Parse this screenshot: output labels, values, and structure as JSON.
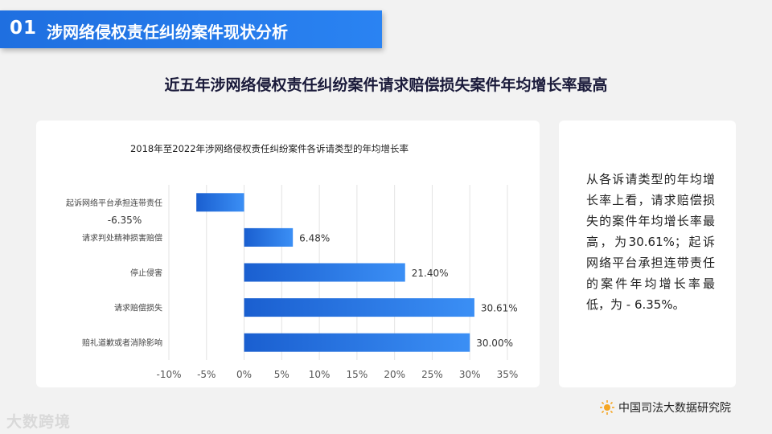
{
  "header": {
    "number": "01",
    "title": "涉网络侵权责任纠纷案件现状分析"
  },
  "subtitle": "近五年涉网络侵权责任纠纷案件请求赔偿损失案件年均增长率最高",
  "side_text": "从各诉请类型的年均增长率上看，请求赔偿损失的案件年均增长率最高，为30.61%；起诉网络平台承担连带责任的案件年均增长率最低，为 - 6.35%。",
  "footer": {
    "left_logo": "大数跨境",
    "right_logo": "中国司法大数据研究院"
  },
  "colors": {
    "accent": "#2a7de8",
    "bar_light": "#3b8ff5",
    "bar_dark": "#1a5fd0"
  },
  "chart_data": {
    "type": "bar",
    "orientation": "horizontal",
    "title": "2018年至2022年涉网络侵权责任纠纷案件各诉请类型的年均增长率",
    "categories": [
      "起诉网络平台承担连带责任",
      "请求判处精神损害赔偿",
      "停止侵害",
      "请求赔偿损失",
      "赔礼道歉或者消除影响"
    ],
    "values": [
      -6.35,
      6.48,
      21.4,
      30.61,
      30.0
    ],
    "data_labels": [
      "-6.35%",
      "6.48%",
      "21.40%",
      "30.61%",
      "30.00%"
    ],
    "x_ticks": [
      "-10%",
      "-5%",
      "0%",
      "5%",
      "10%",
      "15%",
      "20%",
      "25%",
      "30%",
      "35%"
    ],
    "xlim": [
      -10,
      35
    ],
    "grid": true
  }
}
